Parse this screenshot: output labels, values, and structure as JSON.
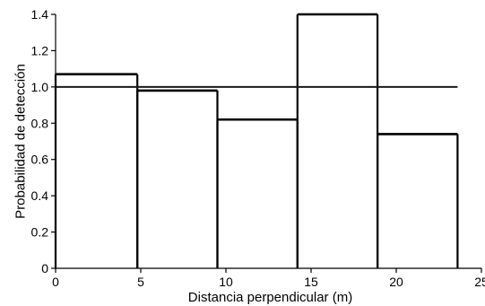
{
  "chart_data": {
    "type": "bar",
    "subtype": "histogram",
    "bins": [
      {
        "x0": 0,
        "x1": 4.8,
        "value": 1.07
      },
      {
        "x0": 4.8,
        "x1": 9.5,
        "value": 0.98
      },
      {
        "x0": 9.5,
        "x1": 14.2,
        "value": 0.82
      },
      {
        "x0": 14.2,
        "x1": 18.9,
        "value": 1.4
      },
      {
        "x0": 18.9,
        "x1": 23.6,
        "value": 0.74
      }
    ],
    "reference_line": {
      "y": 1.0,
      "x0": 0,
      "x1": 23.6
    },
    "xlabel": "Distancia perpendicular (m)",
    "ylabel": "Probabilidad de detección",
    "xlim": [
      0,
      25
    ],
    "ylim": [
      0,
      1.4
    ],
    "x_ticks": [
      "0",
      "5",
      "10",
      "15",
      "20",
      "25"
    ],
    "y_ticks": [
      "0",
      "0.2",
      "0.4",
      "0.6",
      "0.8",
      "1.0",
      "1.2",
      "1.4"
    ],
    "grid": false
  }
}
